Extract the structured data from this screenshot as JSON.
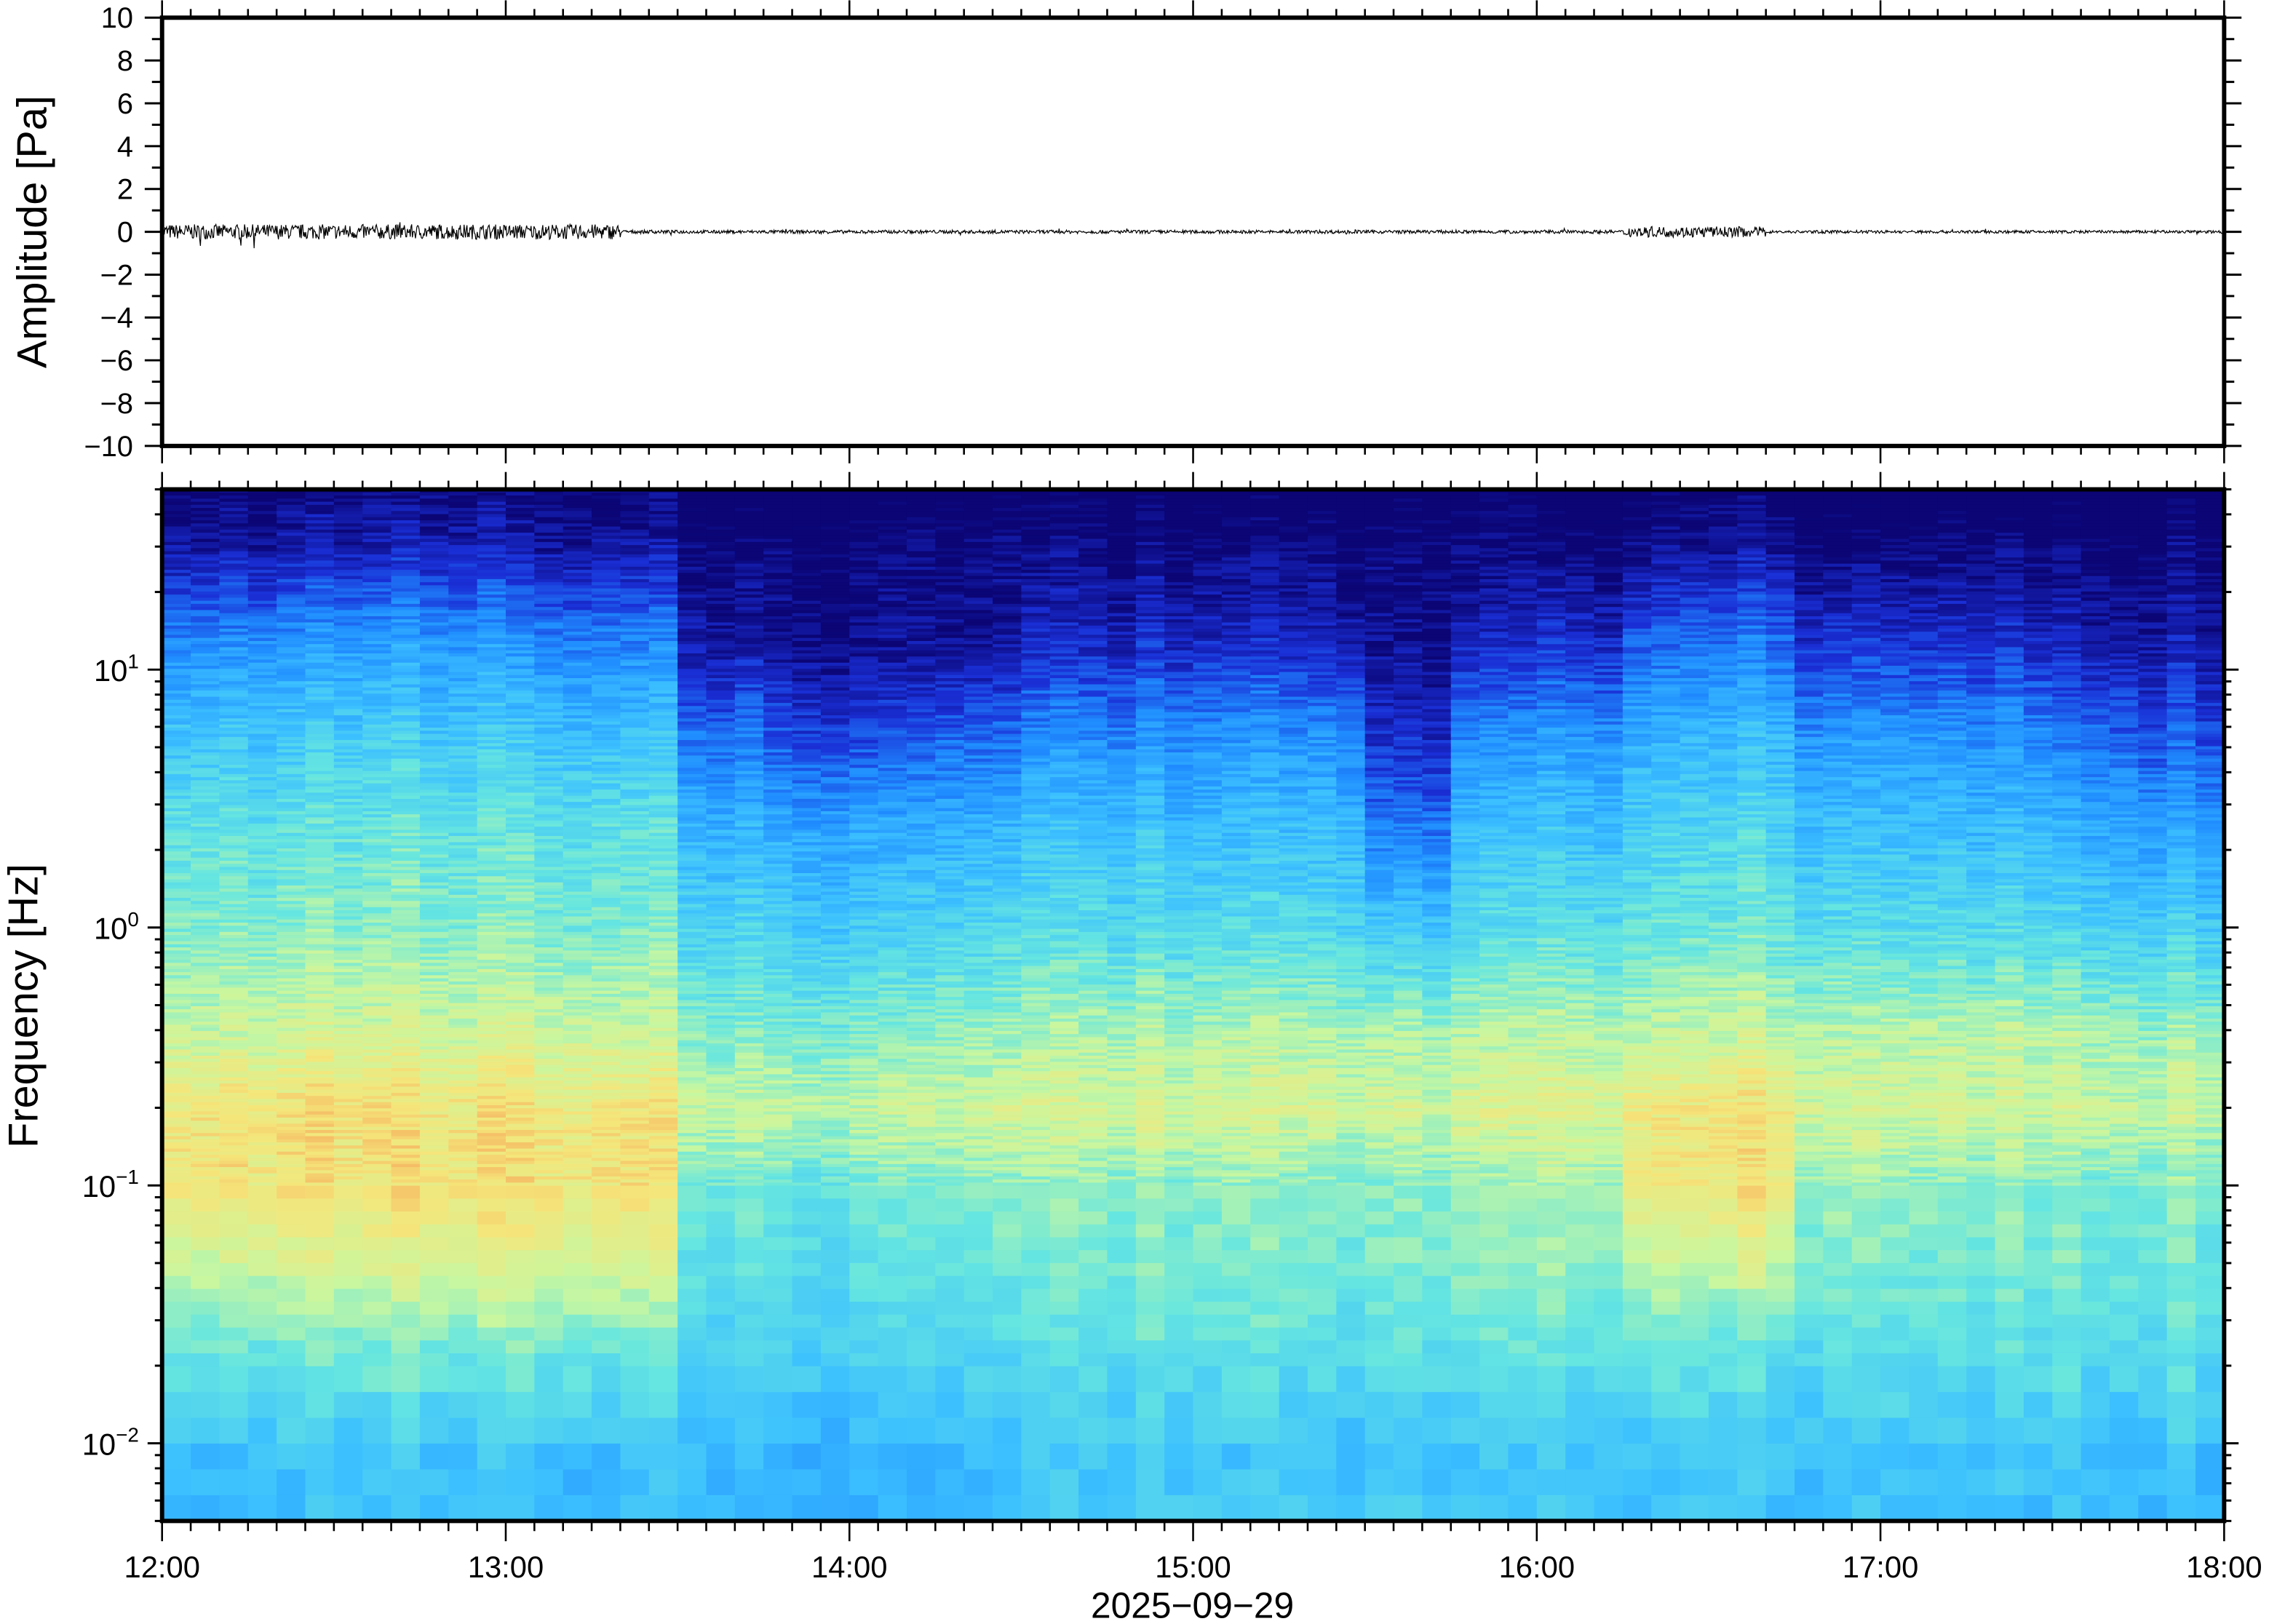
{
  "chart_data": [
    {
      "type": "line",
      "ylabel": "Amplitude [Pa]",
      "ylim": [
        -10,
        10
      ],
      "yticks": [
        "10",
        "8",
        "6",
        "4",
        "2",
        "0",
        "−2",
        "−4",
        "−6",
        "−8",
        "−10"
      ],
      "xlim": [
        "12:00",
        "18:00"
      ],
      "grid": false,
      "trace_color": "#000000",
      "envelope": [
        {
          "from": "12:00",
          "to": "13:20",
          "amplitude": 0.35
        },
        {
          "from": "13:20",
          "to": "16:15",
          "amplitude": 0.08
        },
        {
          "from": "16:15",
          "to": "16:40",
          "amplitude": 0.25
        },
        {
          "from": "16:40",
          "to": "18:00",
          "amplitude": 0.07
        }
      ]
    },
    {
      "type": "heatmap",
      "ylabel": "Frequency [Hz]",
      "yscale": "log",
      "ylim": [
        0.005,
        50
      ],
      "yticks": [
        {
          "base": "10",
          "exp": "1"
        },
        {
          "base": "10",
          "exp": "0"
        },
        {
          "base": "10",
          "exp": "−1"
        },
        {
          "base": "10",
          "exp": "−2"
        }
      ],
      "xlabel": "2025−09−29",
      "xticks": [
        "12:00",
        "13:00",
        "14:00",
        "15:00",
        "16:00",
        "17:00",
        "18:00"
      ],
      "colormap": [
        "#0b0575",
        "#1a2fd6",
        "#1f8cff",
        "#3cc0ff",
        "#66e6e0",
        "#c8f7a0",
        "#f5e67a",
        "#f5a55a"
      ],
      "grid": false,
      "time_bins": [
        "12:00",
        "12:15",
        "12:30",
        "12:45",
        "13:00",
        "13:15",
        "13:30",
        "13:45",
        "14:00",
        "14:15",
        "14:30",
        "14:45",
        "15:00",
        "15:15",
        "15:30",
        "15:45",
        "16:00",
        "16:15",
        "16:30",
        "16:45",
        "17:00",
        "17:15",
        "17:30",
        "17:45"
      ],
      "log10_frequency_bands": [
        1.5,
        1.1,
        0.75,
        0.4,
        0.0,
        -0.4,
        -0.7,
        -1.0,
        -1.3,
        -1.6,
        -2.0,
        -2.2
      ],
      "normalized_levels": [
        [
          0.06,
          0.3,
          0.45,
          0.55,
          0.62,
          0.72,
          0.85,
          0.85,
          0.72,
          0.58,
          0.42,
          0.42
        ],
        [
          0.07,
          0.32,
          0.46,
          0.55,
          0.63,
          0.74,
          0.86,
          0.86,
          0.74,
          0.6,
          0.44,
          0.42
        ],
        [
          0.08,
          0.34,
          0.47,
          0.56,
          0.63,
          0.74,
          0.86,
          0.86,
          0.74,
          0.6,
          0.44,
          0.44
        ],
        [
          0.08,
          0.33,
          0.46,
          0.55,
          0.62,
          0.74,
          0.85,
          0.86,
          0.75,
          0.6,
          0.44,
          0.44
        ],
        [
          0.06,
          0.3,
          0.45,
          0.55,
          0.62,
          0.74,
          0.85,
          0.86,
          0.76,
          0.6,
          0.44,
          0.42
        ],
        [
          0.05,
          0.28,
          0.43,
          0.54,
          0.6,
          0.72,
          0.84,
          0.85,
          0.74,
          0.58,
          0.42,
          0.42
        ],
        [
          0.0,
          0.08,
          0.25,
          0.4,
          0.5,
          0.62,
          0.72,
          0.6,
          0.55,
          0.5,
          0.42,
          0.42
        ],
        [
          0.0,
          0.05,
          0.2,
          0.37,
          0.48,
          0.62,
          0.72,
          0.58,
          0.54,
          0.5,
          0.42,
          0.4
        ],
        [
          0.0,
          0.04,
          0.18,
          0.36,
          0.48,
          0.62,
          0.72,
          0.6,
          0.55,
          0.5,
          0.4,
          0.38
        ],
        [
          0.0,
          0.05,
          0.22,
          0.38,
          0.5,
          0.64,
          0.73,
          0.62,
          0.56,
          0.5,
          0.42,
          0.42
        ],
        [
          0.0,
          0.1,
          0.28,
          0.42,
          0.52,
          0.66,
          0.74,
          0.62,
          0.58,
          0.52,
          0.44,
          0.44
        ],
        [
          0.0,
          0.12,
          0.3,
          0.43,
          0.52,
          0.68,
          0.75,
          0.64,
          0.6,
          0.55,
          0.46,
          0.48
        ],
        [
          0.0,
          0.12,
          0.3,
          0.42,
          0.52,
          0.68,
          0.75,
          0.63,
          0.6,
          0.55,
          0.44,
          0.46
        ],
        [
          0.0,
          0.11,
          0.3,
          0.42,
          0.52,
          0.68,
          0.75,
          0.62,
          0.6,
          0.54,
          0.44,
          0.46
        ],
        [
          0.0,
          0.03,
          0.12,
          0.25,
          0.45,
          0.66,
          0.74,
          0.62,
          0.6,
          0.55,
          0.45,
          0.47
        ],
        [
          0.0,
          0.1,
          0.28,
          0.42,
          0.52,
          0.68,
          0.76,
          0.64,
          0.62,
          0.56,
          0.44,
          0.46
        ],
        [
          0.0,
          0.14,
          0.32,
          0.44,
          0.54,
          0.7,
          0.78,
          0.66,
          0.64,
          0.56,
          0.46,
          0.46
        ],
        [
          0.04,
          0.24,
          0.4,
          0.5,
          0.58,
          0.72,
          0.84,
          0.84,
          0.72,
          0.58,
          0.46,
          0.46
        ],
        [
          0.05,
          0.26,
          0.42,
          0.51,
          0.58,
          0.72,
          0.85,
          0.85,
          0.72,
          0.56,
          0.46,
          0.46
        ],
        [
          0.0,
          0.16,
          0.33,
          0.44,
          0.54,
          0.7,
          0.76,
          0.66,
          0.62,
          0.55,
          0.45,
          0.45
        ],
        [
          0.0,
          0.15,
          0.32,
          0.43,
          0.53,
          0.7,
          0.75,
          0.64,
          0.6,
          0.55,
          0.45,
          0.45
        ],
        [
          0.0,
          0.14,
          0.31,
          0.42,
          0.52,
          0.7,
          0.74,
          0.63,
          0.6,
          0.55,
          0.45,
          0.44
        ],
        [
          0.0,
          0.1,
          0.25,
          0.38,
          0.5,
          0.68,
          0.74,
          0.62,
          0.6,
          0.55,
          0.44,
          0.44
        ],
        [
          0.0,
          0.08,
          0.2,
          0.34,
          0.48,
          0.66,
          0.72,
          0.62,
          0.58,
          0.54,
          0.44,
          0.42
        ]
      ]
    }
  ]
}
